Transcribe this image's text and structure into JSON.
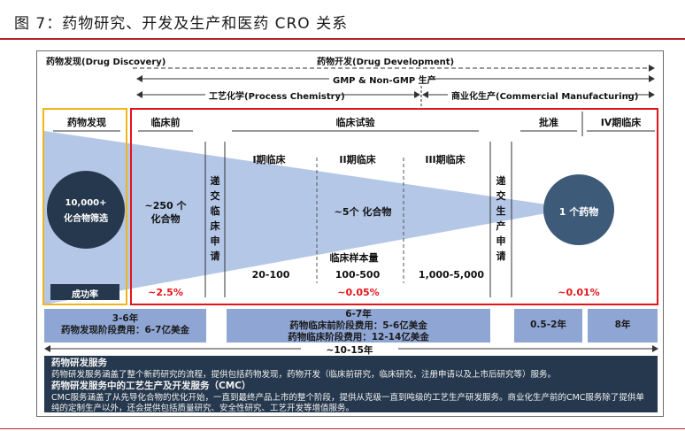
{
  "title": "图 7：药物研究、开发及生产和医药 CRO 关系",
  "header": {
    "discovery": "药物发现(Drug Discovery)",
    "development": "药物开发(Drug Development)",
    "gmp": "GMP & Non-GMP 生产",
    "process_chem": "工艺化学(Process Chemistry)",
    "commercial": "商业化生产(Commercial Manufacturing)"
  },
  "stages": {
    "discovery": "药物发现",
    "preclinical": "临床前",
    "clinical": "临床试验",
    "approval": "批准",
    "phase4": "IV期临床"
  },
  "submissions": {
    "clinical_app": "递交临床申请",
    "production_app": "递交生产申请"
  },
  "phases": {
    "p1": "I期临床",
    "p2": "II期临床",
    "p3": "III期临床"
  },
  "funnel": {
    "start_line1": "10,000+",
    "start_line2": "化合物筛选",
    "preclinical_line1": "~250 个",
    "preclinical_line2": "化合物",
    "clinical": "~5个 化合物",
    "end": "1 个药物"
  },
  "sample_size": {
    "label": "临床样本量",
    "p1": "20-100",
    "p2": "100-500",
    "p3": "1,000-5,000"
  },
  "success_rate": {
    "label": "成功率",
    "preclinical": "~2.5%",
    "clinical": "~0.05%",
    "end": "~0.01%"
  },
  "bars": {
    "discovery_line1": "3-6年",
    "discovery_line2": "药物发现阶段费用：6-7亿美金",
    "clinical_line1": "6-7年",
    "clinical_line2": "药物临床前阶段费用：5-6亿美金",
    "clinical_line3": "药物临床阶段费用：12-14亿美金",
    "approval": "0.5-2年",
    "phase4": "8年",
    "total": "~10-15年"
  },
  "info": {
    "h1": "药物研发服务",
    "p1": "药物研发服务涵盖了整个新药研究的流程，提供包括药物发现，药物开发（临床前研究，临床研究，注册申请以及上市后研究等）服务。",
    "h2": "药物研发服务中的工艺生产及开发服务（CMC）",
    "p2": "CMC服务涵盖了从先导化合物的优化开始，一直到最终产品上市的整个阶段，提供从克级一直到吨级的工艺生产研发服务。商业化生产前的CMC服务除了提供单纯的定制生产以外，还会提供包括质量研究、安全性研究、工艺开发等增值服务。"
  },
  "colors": {
    "red": "#e3141a",
    "yellow": "#f1b51c",
    "bar_blue": "#8fa6d4",
    "navy": "#26384d",
    "funnel": "#b4c7e7"
  }
}
